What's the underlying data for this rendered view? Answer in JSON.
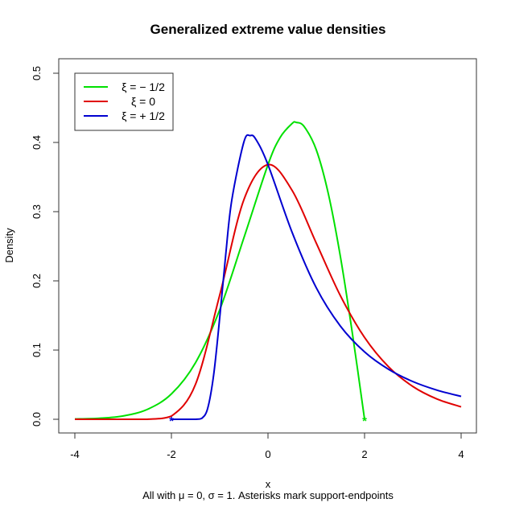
{
  "chart_data": {
    "type": "line",
    "title": "Generalized extreme value densities",
    "xlabel": "x",
    "ylabel": "Density",
    "subtitle": "All with μ = 0, σ = 1. Asterisks mark support-endpoints",
    "xlim": [
      -4,
      4
    ],
    "ylim": [
      0,
      0.5
    ],
    "x_ticks": [
      -4,
      -2,
      0,
      2,
      4
    ],
    "x_tick_labels": [
      "-4",
      "-2",
      "0",
      "2",
      "4"
    ],
    "y_ticks": [
      0,
      0.1,
      0.2,
      0.3,
      0.4,
      0.5
    ],
    "y_tick_labels": [
      "0.0",
      "0.1",
      "0.2",
      "0.3",
      "0.4",
      "0.5"
    ],
    "grid": false,
    "legend_placement": "top-left",
    "series": [
      {
        "name": "ξ = − 1/2",
        "color": "#00e000",
        "x": [
          -4,
          -3.5,
          -3,
          -2.5,
          -2,
          -1.5,
          -1,
          -0.5,
          0,
          0.25,
          0.5,
          0.586,
          0.75,
          1,
          1.25,
          1.5,
          1.75,
          2
        ],
        "y": [
          0.00037,
          0.00143,
          0.00483,
          0.01425,
          0.0366,
          0.0819,
          0.1581,
          0.262,
          0.3679,
          0.407,
          0.4274,
          0.4289,
          0.4229,
          0.3894,
          0.3258,
          0.2349,
          0.1231,
          0
        ]
      },
      {
        "name": "ξ = 0",
        "color": "#e00000",
        "x": [
          -4,
          -3.5,
          -3,
          -2.5,
          -2,
          -1.5,
          -1,
          -0.5,
          0,
          0.5,
          1,
          1.5,
          2,
          2.5,
          3,
          3.5,
          4
        ],
        "y": [
          0,
          0,
          0,
          6e-05,
          0.00457,
          0.0507,
          0.1794,
          0.3171,
          0.3679,
          0.3307,
          0.2546,
          0.1785,
          0.1182,
          0.0756,
          0.0474,
          0.0293,
          0.018
        ]
      },
      {
        "name": "ξ = + 1/2",
        "color": "#0000d0",
        "x": [
          -2,
          -1.75,
          -1.5,
          -1.375,
          -1.25,
          -1.125,
          -1,
          -0.875,
          -0.75,
          -0.5,
          -0.367,
          -0.25,
          0,
          0.5,
          1,
          1.5,
          2,
          2.5,
          3,
          3.5,
          4
        ],
        "y": [
          0,
          0,
          1e-05,
          0.00117,
          0.0155,
          0.0642,
          0.1465,
          0.238,
          0.3166,
          0.4005,
          0.4099,
          0.4044,
          0.3679,
          0.27,
          0.19,
          0.1346,
          0.0974,
          0.0721,
          0.0545,
          0.0421,
          0.0331
        ]
      }
    ],
    "endpoints": [
      {
        "x": -2,
        "y": 0,
        "color": "#0000d0"
      },
      {
        "x": 2,
        "y": 0,
        "color": "#00e000"
      }
    ]
  }
}
